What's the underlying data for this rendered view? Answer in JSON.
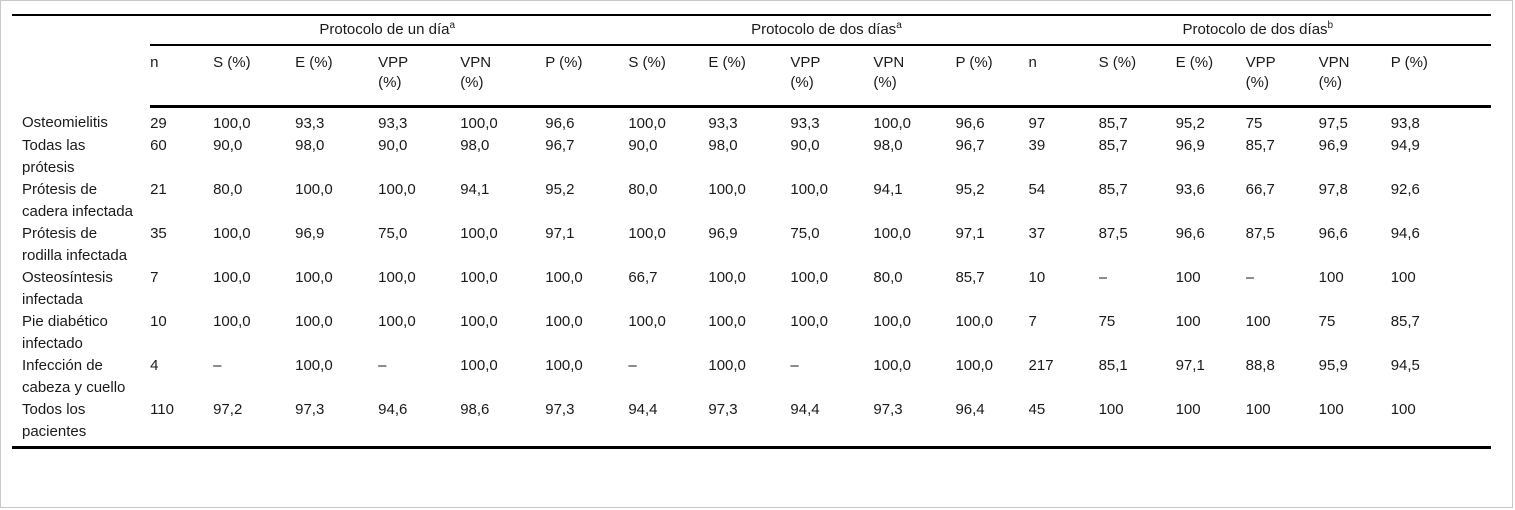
{
  "page": {
    "background_color": "#ffffff",
    "frame_border_color": "#c8c8c8",
    "rule_color": "#000000",
    "text_color": "#1a1a1a"
  },
  "table": {
    "corner_label": "",
    "groups": [
      {
        "label": "Protocolo de un día",
        "footnote": "a",
        "span": 6
      },
      {
        "label": "Protocolo de dos días",
        "footnote": "a",
        "span": 5
      },
      {
        "label": "Protocolo de dos días",
        "footnote": "b",
        "span": 6
      }
    ],
    "columns": [
      "n",
      "S (%)",
      "E (%)",
      "VPP (%)",
      "VPN (%)",
      "P (%)",
      "S (%)",
      "E (%)",
      "VPP (%)",
      "VPN (%)",
      "P (%)",
      "n",
      "S (%)",
      "E (%)",
      "VPP (%)",
      "VPN (%)",
      "P (%)"
    ],
    "rows": [
      {
        "label": "Osteomielitis",
        "values": [
          "29",
          "100,0",
          "93,3",
          "93,3",
          "100,0",
          "96,6",
          "100,0",
          "93,3",
          "93,3",
          "100,0",
          "96,6",
          "97",
          "85,7",
          "95,2",
          "75",
          "97,5",
          "93,8"
        ]
      },
      {
        "label": "Todas las prótesis",
        "values": [
          "60",
          "90,0",
          "98,0",
          "90,0",
          "98,0",
          "96,7",
          "90,0",
          "98,0",
          "90,0",
          "98,0",
          "96,7",
          "39",
          "85,7",
          "96,9",
          "85,7",
          "96,9",
          "94,9"
        ]
      },
      {
        "label": "Prótesis de cadera infectada",
        "values": [
          "21",
          "80,0",
          "100,0",
          "100,0",
          "94,1",
          "95,2",
          "80,0",
          "100,0",
          "100,0",
          "94,1",
          "95,2",
          "54",
          "85,7",
          "93,6",
          "66,7",
          "97,8",
          "92,6"
        ]
      },
      {
        "label": "Prótesis de rodilla infectada",
        "values": [
          "35",
          "100,0",
          "96,9",
          "75,0",
          "100,0",
          "97,1",
          "100,0",
          "96,9",
          "75,0",
          "100,0",
          "97,1",
          "37",
          "87,5",
          "96,6",
          "87,5",
          "96,6",
          "94,6"
        ]
      },
      {
        "label": "Osteosíntesis infectada",
        "values": [
          "7",
          "100,0",
          "100,0",
          "100,0",
          "100,0",
          "100,0",
          "66,7",
          "100,0",
          "100,0",
          "80,0",
          "85,7",
          "10",
          "–",
          "100",
          "–",
          "100",
          "100"
        ]
      },
      {
        "label": "Pie diabético infectado",
        "values": [
          "10",
          "100,0",
          "100,0",
          "100,0",
          "100,0",
          "100,0",
          "100,0",
          "100,0",
          "100,0",
          "100,0",
          "100,0",
          "7",
          "75",
          "100",
          "100",
          "75",
          "85,7"
        ]
      },
      {
        "label": "Infección de cabeza y cuello",
        "values": [
          "4",
          "–",
          "100,0",
          "–",
          "100,0",
          "100,0",
          "–",
          "100,0",
          "–",
          "100,0",
          "100,0",
          "217",
          "85,1",
          "97,1",
          "88,8",
          "95,9",
          "94,5"
        ]
      },
      {
        "label": "Todos los pacientes",
        "values": [
          "110",
          "97,2",
          "97,3",
          "94,6",
          "98,6",
          "97,3",
          "94,4",
          "97,3",
          "94,4",
          "97,3",
          "96,4",
          "45",
          "100",
          "100",
          "100",
          "100",
          "100"
        ]
      }
    ]
  }
}
